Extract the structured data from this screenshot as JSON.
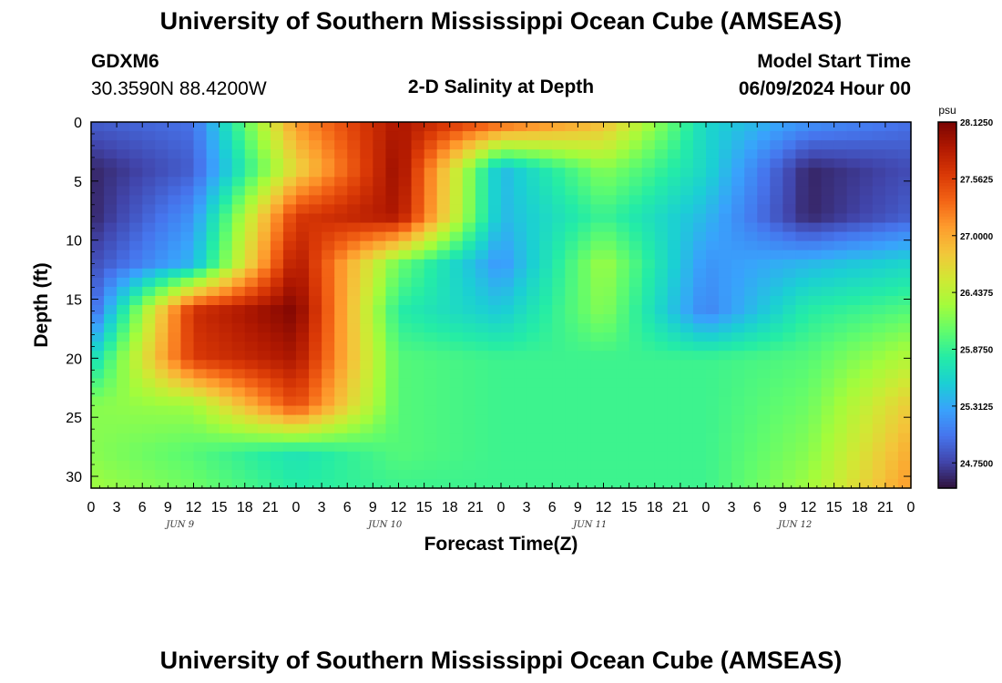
{
  "header": {
    "title": "University of Southern Mississippi Ocean Cube (AMSEAS)",
    "station": "GDXM6",
    "coordinates": "30.3590N  88.4200W",
    "subtitle": "2-D Salinity at Depth",
    "model_start_label": "Model Start Time",
    "model_start_value": "06/09/2024 Hour 00"
  },
  "footer": {
    "title": "University of Southern Mississippi Ocean Cube (AMSEAS)"
  },
  "chart_data": {
    "type": "heatmap",
    "title": "2-D Salinity at Depth",
    "xlabel": "Forecast Time(Z)",
    "ylabel": "Depth (ft)",
    "x_hours": [
      0,
      12,
      24,
      36,
      48,
      60,
      72,
      84,
      96
    ],
    "x_tick_labels": [
      "0",
      "3",
      "6",
      "9",
      "12",
      "15",
      "18",
      "21",
      "0",
      "3",
      "6",
      "9",
      "12",
      "15",
      "18",
      "21",
      "0",
      "3",
      "6",
      "9",
      "12",
      "15",
      "18",
      "21",
      "0",
      "3",
      "6",
      "9",
      "12",
      "15",
      "18",
      "21",
      "0"
    ],
    "x_range_hours": [
      0,
      96
    ],
    "date_labels": [
      "JUN 9",
      "JUN 10",
      "JUN 11",
      "JUN 12"
    ],
    "y_depth_ft": [
      0,
      4,
      8,
      12,
      16,
      20,
      24,
      28,
      31
    ],
    "y_ticks": [
      0,
      5,
      10,
      15,
      20,
      25,
      30
    ],
    "y_range": [
      0,
      31
    ],
    "values": [
      [
        24.9,
        25.0,
        27.1,
        27.9,
        27.4,
        26.9,
        25.6,
        25.2,
        25.0
      ],
      [
        24.6,
        24.9,
        26.7,
        28.0,
        25.4,
        26.2,
        25.6,
        24.6,
        24.8
      ],
      [
        24.6,
        25.2,
        27.6,
        27.9,
        25.4,
        25.9,
        25.4,
        24.6,
        24.9
      ],
      [
        24.8,
        25.4,
        27.9,
        26.1,
        25.2,
        26.3,
        25.2,
        25.4,
        25.6
      ],
      [
        24.9,
        27.7,
        28.1,
        25.8,
        25.5,
        26.2,
        25.1,
        25.8,
        26.0
      ],
      [
        25.6,
        27.6,
        27.9,
        26.0,
        25.9,
        25.9,
        25.9,
        26.0,
        26.4
      ],
      [
        26.2,
        26.3,
        27.5,
        26.0,
        25.9,
        25.9,
        25.9,
        26.1,
        26.8
      ],
      [
        26.2,
        26.0,
        25.7,
        26.0,
        25.9,
        25.9,
        25.9,
        26.2,
        27.0
      ],
      [
        26.3,
        26.1,
        25.8,
        25.9,
        25.9,
        25.9,
        25.9,
        26.3,
        27.1
      ]
    ],
    "colorbar": {
      "unit": "psu",
      "tick_values": [
        28.125,
        27.5625,
        27.0,
        26.4375,
        25.875,
        25.3125,
        24.75
      ],
      "tick_labels": [
        "28.1250",
        "27.5625",
        "27.0000",
        "26.4375",
        "25.8750",
        "25.3125",
        "24.7500"
      ],
      "range": [
        24.5,
        28.125
      ]
    },
    "colormap": [
      "#30123b",
      "#4145ab",
      "#4675ed",
      "#39a2fc",
      "#1bcfd4",
      "#24eca6",
      "#61fc6c",
      "#a4fc3b",
      "#d1e834",
      "#f3c63a",
      "#fe9b2d",
      "#f36315",
      "#d93806",
      "#b11901",
      "#7a0402"
    ]
  }
}
